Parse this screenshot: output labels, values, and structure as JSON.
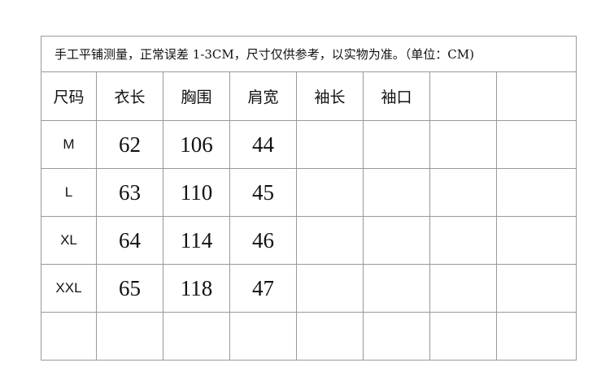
{
  "note": "手工平铺测量，正常误差 1-3CM，尺寸仅供参考，以实物为准。（单位：CM)",
  "headers": [
    "尺码",
    "衣长",
    "胸围",
    "肩宽",
    "袖长",
    "袖口",
    "",
    ""
  ],
  "rows": [
    [
      "M",
      "62",
      "106",
      "44",
      "",
      "",
      "",
      ""
    ],
    [
      "L",
      "63",
      "110",
      "45",
      "",
      "",
      "",
      ""
    ],
    [
      "XL",
      "64",
      "114",
      "46",
      "",
      "",
      "",
      ""
    ],
    [
      "XXL",
      "65",
      "118",
      "47",
      "",
      "",
      "",
      ""
    ],
    [
      "",
      "",
      "",
      "",
      "",
      "",
      "",
      ""
    ]
  ]
}
